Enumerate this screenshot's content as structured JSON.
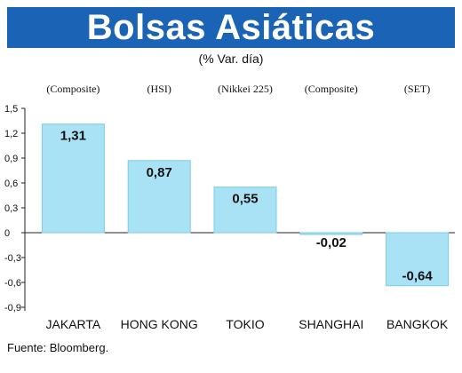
{
  "title": "Bolsas Asiáticas",
  "subtitle": "(% Var. día)",
  "source": "Fuente: Bloomberg.",
  "colors": {
    "banner": "#1b63b4",
    "bar": "#a9e2f5",
    "bar_stroke": "#7ccbe6"
  },
  "chart_data": {
    "type": "bar",
    "categories": [
      "JAKARTA",
      "HONG KONG",
      "TOKIO",
      "SHANGHAI",
      "BANGKOK"
    ],
    "index_labels": [
      "(Composite)",
      "(HSI)",
      "(Nikkei 225)",
      "(Composite)",
      "(SET)"
    ],
    "values": [
      1.31,
      0.87,
      0.55,
      -0.02,
      -0.64
    ],
    "value_labels": [
      "1,31",
      "0,87",
      "0,55",
      "-0,02",
      "-0,64"
    ],
    "yticks": [
      1.5,
      1.2,
      0.9,
      0.6,
      0.3,
      0,
      -0.3,
      -0.6,
      -0.9
    ],
    "ytick_labels": [
      "1,5",
      "1,2",
      "0,9",
      "0,6",
      "0,3",
      "0",
      "-0,3",
      "-0,6",
      "-0,9"
    ],
    "ylim": [
      -0.9,
      1.5
    ],
    "grid": false,
    "legend": "none"
  }
}
